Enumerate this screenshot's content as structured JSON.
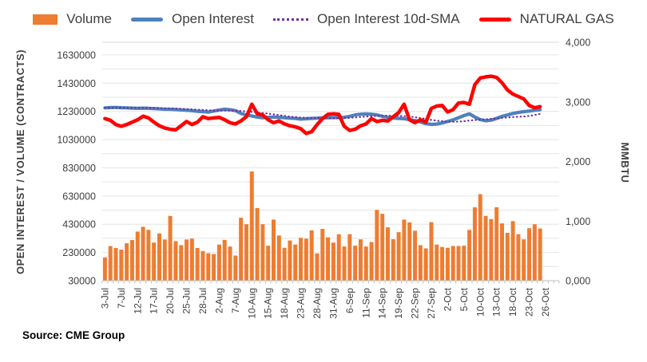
{
  "source_note": "Source: CME Group",
  "legend": [
    {
      "label": "Volume",
      "type": "bar",
      "color": "#ED7D31"
    },
    {
      "label": "Open Interest",
      "type": "line",
      "color": "#4F81BD"
    },
    {
      "label": "Open Interest 10d-SMA",
      "type": "dotted-line",
      "color": "#7030A0"
    },
    {
      "label": "NATURAL GAS",
      "type": "line",
      "color": "#FF0000"
    }
  ],
  "chart_data": {
    "type": "combo-bar-line",
    "title": "",
    "legend_position": "top",
    "grid": true,
    "left_axis": {
      "title": "OPEN INTEREST / VOLUME (CONTRACTS)",
      "ticks": [
        "30000",
        "230000",
        "430000",
        "630000",
        "830000",
        "1030000",
        "1230000",
        "1430000",
        "1630000"
      ],
      "min": 30000,
      "max": 1720000,
      "minor_grid_step": 100000
    },
    "right_axis": {
      "title": "MMBTU",
      "ticks": [
        "0,000",
        "1,000",
        "2,000",
        "3,000",
        "4,000"
      ],
      "min": 0,
      "max": 4000
    },
    "x_tick_labels": [
      "3-Jul",
      "7-Jul",
      "12-Jul",
      "17-Jul",
      "20-Jul",
      "25-Jul",
      "28-Jul",
      "2-Aug",
      "7-Aug",
      "10-Aug",
      "15-Aug",
      "18-Aug",
      "23-Aug",
      "28-Aug",
      "31-Aug",
      "6-Sep",
      "11-Sep",
      "14-Sep",
      "19-Sep",
      "22-Sep",
      "27-Sep",
      "2-Oct",
      "5-Oct",
      "10-Oct",
      "13-Oct",
      "18-Oct",
      "23-Oct",
      "26-Oct"
    ],
    "dates": [
      "3-Jul",
      "5-Jul",
      "6-Jul",
      "7-Jul",
      "10-Jul",
      "11-Jul",
      "12-Jul",
      "13-Jul",
      "14-Jul",
      "17-Jul",
      "18-Jul",
      "19-Jul",
      "20-Jul",
      "21-Jul",
      "24-Jul",
      "25-Jul",
      "26-Jul",
      "27-Jul",
      "28-Jul",
      "31-Jul",
      "1-Aug",
      "2-Aug",
      "3-Aug",
      "4-Aug",
      "7-Aug",
      "8-Aug",
      "9-Aug",
      "10-Aug",
      "11-Aug",
      "14-Aug",
      "15-Aug",
      "16-Aug",
      "17-Aug",
      "18-Aug",
      "21-Aug",
      "22-Aug",
      "23-Aug",
      "24-Aug",
      "25-Aug",
      "28-Aug",
      "29-Aug",
      "30-Aug",
      "31-Aug",
      "1-Sep",
      "5-Sep",
      "6-Sep",
      "7-Sep",
      "8-Sep",
      "11-Sep",
      "12-Sep",
      "13-Sep",
      "14-Sep",
      "15-Sep",
      "18-Sep",
      "19-Sep",
      "20-Sep",
      "21-Sep",
      "22-Sep",
      "25-Sep",
      "26-Sep",
      "27-Sep",
      "28-Sep",
      "29-Sep",
      "2-Oct",
      "3-Oct",
      "4-Oct",
      "5-Oct",
      "6-Oct",
      "9-Oct",
      "10-Oct",
      "11-Oct",
      "12-Oct",
      "13-Oct",
      "16-Oct",
      "17-Oct",
      "18-Oct",
      "19-Oct",
      "20-Oct",
      "23-Oct",
      "24-Oct",
      "25-Oct"
    ],
    "axis_extension_dates": [
      "26-Oct",
      "27-Oct",
      "30-Oct"
    ],
    "series": [
      {
        "name": "Volume",
        "type": "bar",
        "axis": "left",
        "color": "#ED7D31",
        "values": [
          195000,
          275000,
          262000,
          250000,
          295000,
          318000,
          378000,
          412000,
          390000,
          300000,
          365000,
          322000,
          489000,
          310000,
          282000,
          322000,
          328000,
          262000,
          240000,
          224000,
          219000,
          286000,
          319000,
          272000,
          208000,
          476000,
          430000,
          804000,
          545000,
          430000,
          278000,
          463000,
          350000,
          263000,
          315000,
          286000,
          334000,
          328000,
          387000,
          223000,
          397000,
          337000,
          300000,
          359000,
          272000,
          359000,
          278000,
          323000,
          272000,
          304000,
          532000,
          504000,
          408000,
          324000,
          374000,
          463000,
          443000,
          384000,
          282000,
          259000,
          445000,
          286000,
          269000,
          263000,
          276000,
          276000,
          278000,
          390000,
          550000,
          643000,
          489000,
          467000,
          550000,
          436000,
          369000,
          452000,
          359000,
          323000,
          402000,
          430000,
          400000
        ]
      },
      {
        "name": "Open Interest",
        "type": "line",
        "axis": "left",
        "color": "#4F81BD",
        "values": [
          1255000,
          1257000,
          1258000,
          1256000,
          1255000,
          1253000,
          1252000,
          1253000,
          1252000,
          1250000,
          1248000,
          1245000,
          1245000,
          1243000,
          1240000,
          1238000,
          1235000,
          1230000,
          1228000,
          1225000,
          1232000,
          1240000,
          1245000,
          1242000,
          1235000,
          1215000,
          1205000,
          1198000,
          1190000,
          1185000,
          1188000,
          1190000,
          1188000,
          1185000,
          1182000,
          1180000,
          1175000,
          1178000,
          1180000,
          1182000,
          1185000,
          1185000,
          1186000,
          1186000,
          1188000,
          1195000,
          1205000,
          1210000,
          1212000,
          1210000,
          1205000,
          1195000,
          1188000,
          1183000,
          1180000,
          1178000,
          1172000,
          1165000,
          1155000,
          1143000,
          1138000,
          1140000,
          1148000,
          1158000,
          1170000,
          1185000,
          1200000,
          1213000,
          1190000,
          1172000,
          1163000,
          1168000,
          1180000,
          1195000,
          1205000,
          1215000,
          1222000,
          1228000,
          1232000,
          1238000,
          1242000
        ]
      },
      {
        "name": "Open Interest 10d-SMA",
        "type": "dotted-line",
        "axis": "left",
        "color": "#7030A0",
        "sma_window": 10,
        "values": [
          1255000,
          1256000,
          1256700,
          1256500,
          1256200,
          1255700,
          1255100,
          1254900,
          1254600,
          1254100,
          1253400,
          1252200,
          1250900,
          1249600,
          1248100,
          1246600,
          1244900,
          1242600,
          1240200,
          1237700,
          1236100,
          1235600,
          1235600,
          1235500,
          1235000,
          1232700,
          1229700,
          1226500,
          1222700,
          1218700,
          1214300,
          1209300,
          1203600,
          1197900,
          1192600,
          1189100,
          1186100,
          1184100,
          1183100,
          1182800,
          1182500,
          1182000,
          1181800,
          1181900,
          1182500,
          1184000,
          1187000,
          1190200,
          1193400,
          1196200,
          1198200,
          1199200,
          1199400,
          1199100,
          1198300,
          1196600,
          1193300,
          1188800,
          1183100,
          1176400,
          1169700,
          1164200,
          1160200,
          1157700,
          1156700,
          1157400,
          1160200,
          1165000,
          1168500,
          1171400,
          1173900,
          1176700,
          1179900,
          1183600,
          1187100,
          1190100,
          1192300,
          1193800,
          1198000,
          1204600,
          1212500
        ]
      },
      {
        "name": "NATURAL GAS",
        "type": "line",
        "axis": "right",
        "color": "#FF0000",
        "values": [
          2720,
          2690,
          2620,
          2590,
          2620,
          2660,
          2700,
          2760,
          2730,
          2660,
          2600,
          2560,
          2540,
          2530,
          2600,
          2670,
          2620,
          2660,
          2750,
          2720,
          2730,
          2740,
          2700,
          2650,
          2630,
          2680,
          2750,
          2960,
          2800,
          2780,
          2700,
          2650,
          2680,
          2630,
          2600,
          2580,
          2550,
          2470,
          2500,
          2620,
          2720,
          2790,
          2800,
          2790,
          2590,
          2520,
          2540,
          2600,
          2630,
          2720,
          2670,
          2690,
          2680,
          2750,
          2820,
          2960,
          2700,
          2650,
          2700,
          2660,
          2890,
          2930,
          2940,
          2830,
          2870,
          2980,
          2990,
          2960,
          3290,
          3400,
          3420,
          3430,
          3410,
          3320,
          3200,
          3130,
          3090,
          3050,
          2940,
          2900,
          2920
        ]
      }
    ]
  }
}
